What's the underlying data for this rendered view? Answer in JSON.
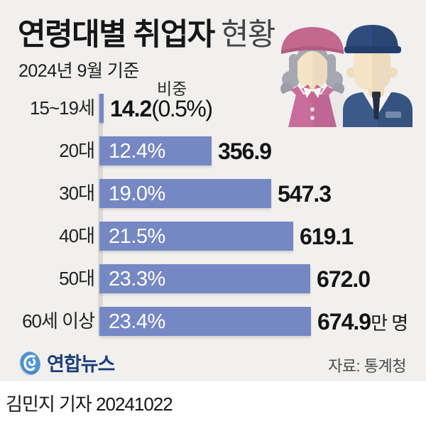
{
  "header": {
    "title_main": "연령대별 취업자",
    "title_sub": "현황",
    "date_note": "2024년 9월 기준",
    "share_header": "비중",
    "illustration": "elderly-worker-couple-icon"
  },
  "chart_data": {
    "type": "bar",
    "orientation": "horizontal",
    "title": "연령대별 취업자 현황",
    "unit": "만 명",
    "max_value": 674.9,
    "bar_color": "#7588c3",
    "categories": [
      "15~19세",
      "20대",
      "30대",
      "40대",
      "50대",
      "60세 이상"
    ],
    "series": [
      {
        "name": "취업자 수(만 명)",
        "values": [
          14.2,
          356.9,
          547.3,
          619.1,
          672.0,
          674.9
        ]
      },
      {
        "name": "비중(%)",
        "values": [
          0.5,
          12.4,
          19.0,
          21.5,
          23.3,
          23.4
        ]
      }
    ],
    "rows": [
      {
        "category": "15~19세",
        "value": 14.2,
        "value_label": "14.2",
        "share_label": "(0.5%)",
        "share_position": "outside",
        "unit_suffix": ""
      },
      {
        "category": "20대",
        "value": 356.9,
        "value_label": "356.9",
        "share_label": "12.4%",
        "share_position": "inside",
        "unit_suffix": ""
      },
      {
        "category": "30대",
        "value": 547.3,
        "value_label": "547.3",
        "share_label": "19.0%",
        "share_position": "inside",
        "unit_suffix": ""
      },
      {
        "category": "40대",
        "value": 619.1,
        "value_label": "619.1",
        "share_label": "21.5%",
        "share_position": "inside",
        "unit_suffix": ""
      },
      {
        "category": "50대",
        "value": 672.0,
        "value_label": "672.0",
        "share_label": "23.3%",
        "share_position": "inside",
        "unit_suffix": ""
      },
      {
        "category": "60세 이상",
        "value": 674.9,
        "value_label": "674.9",
        "share_label": "23.4%",
        "share_position": "inside",
        "unit_suffix": "만 명"
      }
    ]
  },
  "footer": {
    "logo_text": "연합뉴스",
    "source": "자료: 통계청",
    "byline": "김민지 기자 20241022"
  },
  "colors": {
    "background": "#f1f0ee",
    "bar": "#7588c3",
    "axis_strip": "#dbd9d7",
    "logo_navy": "#1d3e79",
    "logo_blue": "#4a90cf"
  }
}
